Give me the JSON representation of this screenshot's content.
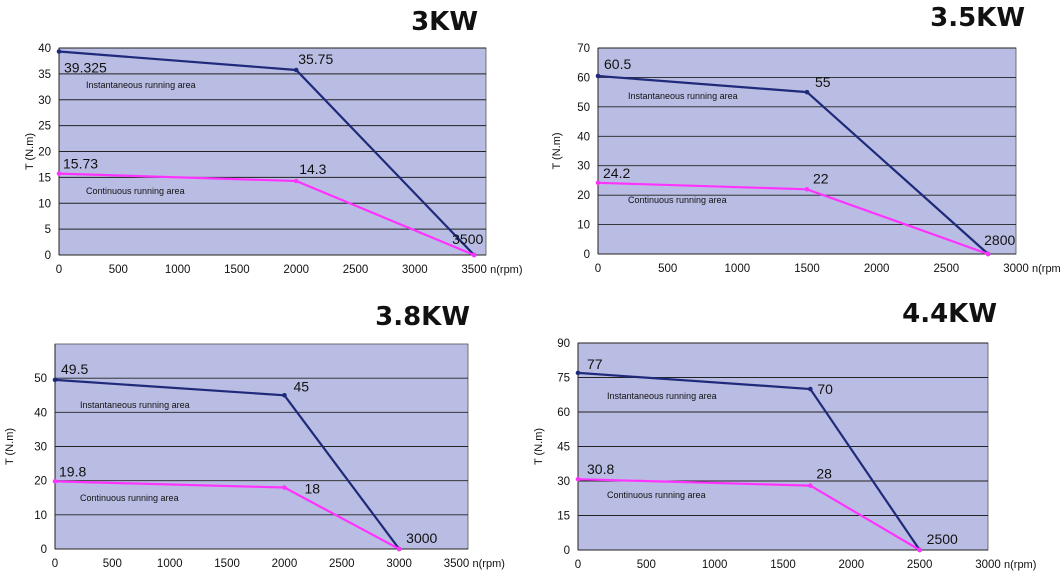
{
  "chart_data": [
    {
      "type": "line",
      "title": "3KW",
      "xlabel": "n(rpm)",
      "ylabel": "T (N.m)",
      "xlim": [
        0,
        3600
      ],
      "ylim": [
        0,
        40
      ],
      "x_ticks": [
        0,
        500,
        1000,
        1500,
        2000,
        2500,
        3000,
        3500
      ],
      "y_ticks": [
        0,
        5,
        10,
        15,
        20,
        25,
        30,
        35,
        40
      ],
      "grid": "horizontal",
      "background": "#b9bde3",
      "series": [
        {
          "color": "#1f2a7a",
          "points": [
            [
              0,
              39.325
            ],
            [
              2000,
              35.75
            ],
            [
              3500,
              0
            ]
          ]
        },
        {
          "color": "#ff33ff",
          "points": [
            [
              0,
              15.73
            ],
            [
              2000,
              14.3
            ],
            [
              3500,
              0
            ]
          ]
        }
      ],
      "data_labels": [
        "39.325",
        "35.75",
        "15.73",
        "14.3",
        "3500"
      ],
      "annotations": [
        "Instantaneous running area",
        "Continuous running area"
      ]
    },
    {
      "type": "line",
      "title": "3.5KW",
      "xlabel": "n(rpm)",
      "ylabel": "T (N.m)",
      "xlim": [
        0,
        3000
      ],
      "ylim": [
        0,
        70
      ],
      "x_ticks": [
        0,
        500,
        1000,
        1500,
        2000,
        2500,
        3000
      ],
      "y_ticks": [
        0,
        10,
        20,
        30,
        40,
        50,
        60,
        70
      ],
      "grid": "horizontal",
      "background": "#b9bde3",
      "series": [
        {
          "color": "#1f2a7a",
          "points": [
            [
              0,
              60.5
            ],
            [
              1500,
              55
            ],
            [
              2800,
              0
            ]
          ]
        },
        {
          "color": "#ff33ff",
          "points": [
            [
              0,
              24.2
            ],
            [
              1500,
              22
            ],
            [
              2800,
              0
            ]
          ]
        }
      ],
      "data_labels": [
        "60.5",
        "55",
        "24.2",
        "22",
        "2800"
      ],
      "annotations": [
        "Instantaneous running area",
        "Continuous running area"
      ]
    },
    {
      "type": "line",
      "title": "3.8KW",
      "xlabel": "n(rpm)",
      "ylabel": "T (N.m)",
      "xlim": [
        0,
        3600
      ],
      "ylim": [
        0,
        60
      ],
      "x_ticks": [
        0,
        500,
        1000,
        1500,
        2000,
        2500,
        3000,
        3500
      ],
      "y_ticks": [
        0,
        10,
        20,
        30,
        40,
        50
      ],
      "grid": "horizontal",
      "background": "#b9bde3",
      "series": [
        {
          "color": "#1f2a7a",
          "points": [
            [
              0,
              49.5
            ],
            [
              2000,
              45
            ],
            [
              3000,
              0
            ]
          ]
        },
        {
          "color": "#ff33ff",
          "points": [
            [
              0,
              19.8
            ],
            [
              2000,
              18
            ],
            [
              3000,
              0
            ]
          ]
        }
      ],
      "data_labels": [
        "49.5",
        "45",
        "19.8",
        "18",
        "3000"
      ],
      "annotations": [
        "Instantaneous running area",
        "Continuous running area"
      ]
    },
    {
      "type": "line",
      "title": "4.4KW",
      "xlabel": "n(rpm)",
      "ylabel": "T (N.m)",
      "xlim": [
        0,
        3000
      ],
      "ylim": [
        0,
        90
      ],
      "x_ticks": [
        0,
        500,
        1000,
        1500,
        2000,
        2500,
        3000
      ],
      "y_ticks": [
        0,
        15,
        30,
        45,
        60,
        75,
        90
      ],
      "grid": "horizontal",
      "background": "#b9bde3",
      "series": [
        {
          "color": "#1f2a7a",
          "points": [
            [
              0,
              77
            ],
            [
              1700,
              70
            ],
            [
              2500,
              0
            ]
          ]
        },
        {
          "color": "#ff33ff",
          "points": [
            [
              0,
              30.8
            ],
            [
              1700,
              28
            ],
            [
              2500,
              0
            ]
          ]
        }
      ],
      "data_labels": [
        "77",
        "70",
        "30.8",
        "28",
        "2500"
      ],
      "annotations": [
        "Instantaneous running area",
        "Continuous running area"
      ]
    }
  ]
}
